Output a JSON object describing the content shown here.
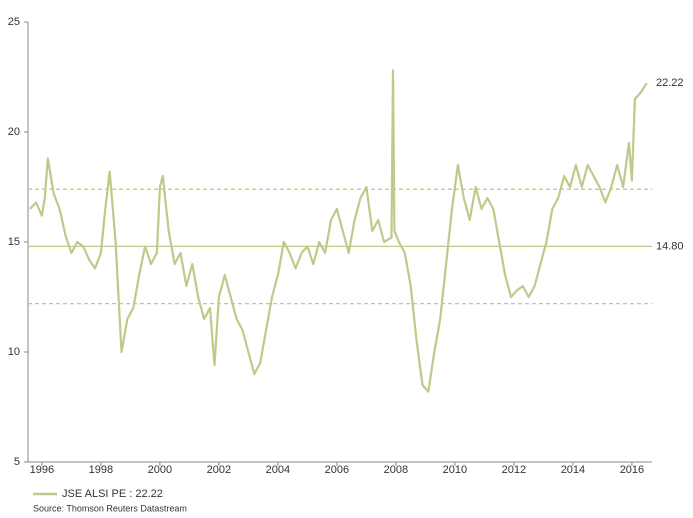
{
  "chart_data": {
    "type": "line",
    "x": [
      1995.6,
      1995.8,
      1996.0,
      1996.1,
      1996.2,
      1996.4,
      1996.6,
      1996.8,
      1997.0,
      1997.2,
      1997.4,
      1997.6,
      1997.8,
      1998.0,
      1998.15,
      1998.3,
      1998.5,
      1998.7,
      1998.9,
      1999.1,
      1999.3,
      1999.5,
      1999.7,
      1999.9,
      2000.0,
      2000.1,
      2000.3,
      2000.5,
      2000.7,
      2000.9,
      2001.1,
      2001.3,
      2001.5,
      2001.7,
      2001.85,
      2002.0,
      2002.2,
      2002.4,
      2002.6,
      2002.8,
      2003.0,
      2003.2,
      2003.4,
      2003.6,
      2003.8,
      2004.0,
      2004.2,
      2004.4,
      2004.6,
      2004.8,
      2005.0,
      2005.2,
      2005.4,
      2005.6,
      2005.8,
      2006.0,
      2006.2,
      2006.4,
      2006.6,
      2006.8,
      2007.0,
      2007.2,
      2007.4,
      2007.6,
      2007.85,
      2007.9,
      2007.95,
      2008.1,
      2008.3,
      2008.5,
      2008.7,
      2008.9,
      2009.1,
      2009.3,
      2009.5,
      2009.7,
      2009.9,
      2010.1,
      2010.3,
      2010.5,
      2010.7,
      2010.9,
      2011.1,
      2011.3,
      2011.5,
      2011.7,
      2011.9,
      2012.1,
      2012.3,
      2012.5,
      2012.7,
      2012.9,
      2013.1,
      2013.3,
      2013.5,
      2013.7,
      2013.9,
      2014.1,
      2014.3,
      2014.5,
      2014.7,
      2014.9,
      2015.1,
      2015.3,
      2015.5,
      2015.7,
      2015.9,
      2016.0,
      2016.1,
      2016.3,
      2016.5
    ],
    "series": [
      {
        "name": "JSE ALSI PE : 22.22",
        "color": "#bfc98a",
        "values": [
          16.5,
          16.8,
          16.2,
          17.0,
          18.8,
          17.2,
          16.5,
          15.3,
          14.5,
          15.0,
          14.8,
          14.2,
          13.8,
          14.5,
          16.5,
          18.2,
          15.0,
          10.0,
          11.5,
          12.0,
          13.5,
          14.8,
          14.0,
          14.5,
          17.5,
          18.0,
          15.5,
          14.0,
          14.5,
          13.0,
          14.0,
          12.5,
          11.5,
          12.0,
          9.4,
          12.5,
          13.5,
          12.5,
          11.5,
          11.0,
          10.0,
          9.0,
          9.5,
          11.0,
          12.5,
          13.5,
          15.0,
          14.5,
          13.8,
          14.5,
          14.8,
          14.0,
          15.0,
          14.5,
          16.0,
          16.5,
          15.5,
          14.5,
          16.0,
          17.0,
          17.5,
          15.5,
          16.0,
          15.0,
          15.2,
          22.8,
          15.5,
          15.0,
          14.5,
          13.0,
          10.5,
          8.5,
          8.2,
          10.0,
          11.5,
          14.0,
          16.5,
          18.5,
          17.0,
          16.0,
          17.5,
          16.5,
          17.0,
          16.5,
          15.0,
          13.5,
          12.5,
          12.8,
          13.0,
          12.5,
          13.0,
          14.0,
          15.0,
          16.5,
          17.0,
          18.0,
          17.5,
          18.5,
          17.5,
          18.5,
          18.0,
          17.5,
          16.8,
          17.5,
          18.5,
          17.5,
          19.5,
          17.8,
          21.5,
          21.8,
          22.22
        ]
      }
    ],
    "xlim": [
      1995.53,
      2016.68
    ],
    "ylim": [
      5,
      25
    ],
    "xticks": [
      1996,
      1998,
      2000,
      2002,
      2004,
      2006,
      2008,
      2010,
      2012,
      2014,
      2016
    ],
    "yticks": [
      5,
      10,
      15,
      20,
      25
    ],
    "hlines": [
      {
        "value": 14.8,
        "label": "14.80",
        "style": "solid"
      },
      {
        "value": 17.4,
        "style": "dashed"
      },
      {
        "value": 12.2,
        "style": "dashed"
      }
    ],
    "annotations": [
      {
        "value": 22.22,
        "label": "22.22"
      }
    ],
    "source": "Source: Thomson Reuters Datastream"
  }
}
